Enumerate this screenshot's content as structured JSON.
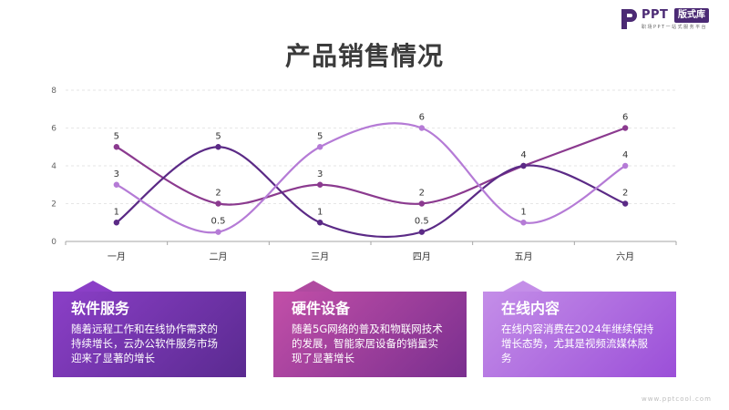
{
  "logo": {
    "ppt": "PPT",
    "badge": "版式库",
    "sub": "职场PPT一站式服务平台",
    "mark_color": "#4b2a74"
  },
  "page_title": "产品销售情况",
  "chart_data": {
    "type": "line",
    "title": "产品销售情况",
    "xlabel": "",
    "ylabel": "",
    "categories": [
      "一月",
      "二月",
      "三月",
      "四月",
      "五月",
      "六月"
    ],
    "yticks": [
      0,
      2,
      4,
      6,
      8
    ],
    "ylim": [
      0,
      8
    ],
    "grid": true,
    "smooth": true,
    "series": [
      {
        "values": [
          5,
          2,
          3,
          2,
          4,
          6
        ],
        "color": "#8b3a8f"
      },
      {
        "values": [
          1,
          5,
          1,
          0.5,
          4,
          2
        ],
        "color": "#5b2a86"
      },
      {
        "values": [
          3,
          0.5,
          5,
          6,
          1,
          4
        ],
        "color": "#b57bd6"
      }
    ],
    "data_labels": [
      {
        "category": "一月",
        "value": 5,
        "text": "5"
      },
      {
        "category": "一月",
        "value": 3,
        "text": "3"
      },
      {
        "category": "一月",
        "value": 1,
        "text": "1"
      },
      {
        "category": "二月",
        "value": 5,
        "text": "5"
      },
      {
        "category": "二月",
        "value": 2,
        "text": "2"
      },
      {
        "category": "二月",
        "value": 0.5,
        "text": "0.5"
      },
      {
        "category": "三月",
        "value": 5,
        "text": "5"
      },
      {
        "category": "三月",
        "value": 3,
        "text": "3"
      },
      {
        "category": "三月",
        "value": 1,
        "text": "1"
      },
      {
        "category": "四月",
        "value": 6,
        "text": "6"
      },
      {
        "category": "四月",
        "value": 2,
        "text": "2"
      },
      {
        "category": "四月",
        "value": 0.5,
        "text": "0.5"
      },
      {
        "category": "五月",
        "value": 4,
        "text": "4"
      },
      {
        "category": "五月",
        "value": 1,
        "text": "1"
      },
      {
        "category": "六月",
        "value": 6,
        "text": "6"
      },
      {
        "category": "六月",
        "value": 4,
        "text": "4"
      },
      {
        "category": "六月",
        "value": 2,
        "text": "2"
      }
    ]
  },
  "cards": [
    {
      "title": "软件服务",
      "text": "随着远程工作和在线协作需求的持续增长，云办公软件服务市场迎来了显著的增长"
    },
    {
      "title": "硬件设备",
      "text": "随着5G网络的普及和物联网技术的发展，智能家居设备的销量实现了显著增长"
    },
    {
      "title": "在线内容",
      "text": "在线内容消费在2024年继续保持增长态势，尤其是视频流媒体服务"
    }
  ],
  "watermark": "www.pptcool.com"
}
